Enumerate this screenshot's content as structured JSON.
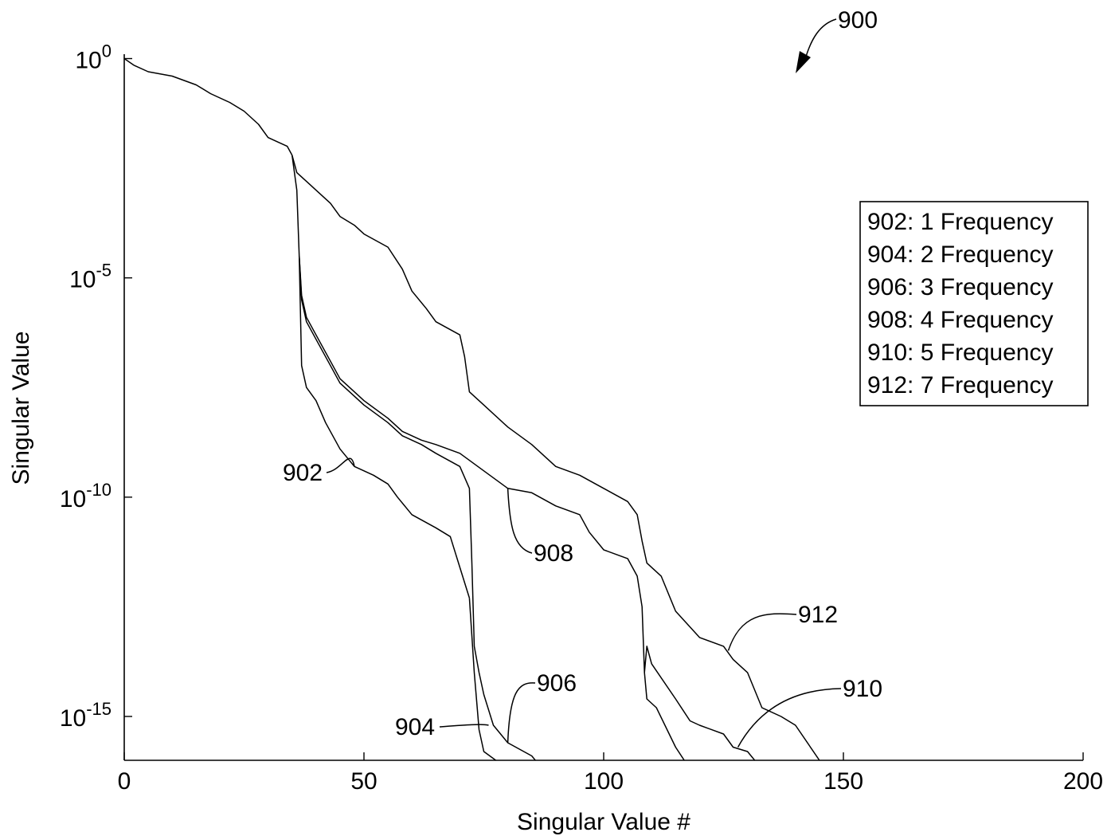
{
  "figure_label": "900",
  "chart_data": {
    "type": "line",
    "title": "",
    "xlabel": "Singular Value #",
    "ylabel": "Singular Value",
    "xlim": [
      0,
      200
    ],
    "ylim_log10": [
      -16,
      0.1
    ],
    "yscale": "log",
    "x_ticks": [
      0,
      50,
      100,
      150,
      200
    ],
    "x_tick_labels": [
      "0",
      "50",
      "100",
      "150",
      "200"
    ],
    "y_ticks_log10": [
      0,
      -5,
      -10,
      -15
    ],
    "y_tick_labels": [
      {
        "base": "10",
        "exp": "0"
      },
      {
        "base": "10",
        "exp": "-5"
      },
      {
        "base": "10",
        "exp": "-10"
      },
      {
        "base": "10",
        "exp": "-15"
      }
    ],
    "grid": false,
    "legend_position": "right",
    "legend": [
      "902: 1 Frequency",
      "904: 2 Frequency",
      "906: 3 Frequency",
      "908: 4 Frequency",
      "910: 5 Frequency",
      "912: 7 Frequency"
    ],
    "series_note": "y values are log10(singular value)",
    "series": [
      {
        "id": "common",
        "label": "",
        "points": [
          [
            0,
            0.0
          ],
          [
            2,
            -0.15
          ],
          [
            5,
            -0.3
          ],
          [
            10,
            -0.4
          ],
          [
            15,
            -0.6
          ],
          [
            18,
            -0.8
          ],
          [
            22,
            -1.0
          ],
          [
            25,
            -1.2
          ],
          [
            28,
            -1.5
          ],
          [
            30,
            -1.8
          ],
          [
            32,
            -1.9
          ],
          [
            34,
            -2.0
          ],
          [
            35,
            -2.2
          ]
        ]
      },
      {
        "id": "902",
        "label": "902",
        "points": [
          [
            35,
            -2.2
          ],
          [
            36,
            -3.0
          ],
          [
            36.5,
            -4.5
          ],
          [
            37,
            -7.0
          ],
          [
            38,
            -7.5
          ],
          [
            40,
            -7.8
          ],
          [
            42,
            -8.3
          ],
          [
            45,
            -8.9
          ],
          [
            48,
            -9.3
          ],
          [
            50,
            -9.4
          ],
          [
            52,
            -9.5
          ],
          [
            55,
            -9.7
          ],
          [
            57,
            -10.0
          ],
          [
            60,
            -10.4
          ],
          [
            65,
            -10.7
          ],
          [
            68,
            -10.9
          ],
          [
            70,
            -11.6
          ],
          [
            72,
            -12.3
          ]
        ]
      },
      {
        "id": "904",
        "label": "904",
        "points": [
          [
            72,
            -12.3
          ],
          [
            73,
            -14.0
          ],
          [
            74,
            -15.3
          ],
          [
            75,
            -15.8
          ],
          [
            80,
            -16.2
          ],
          [
            85,
            -16.4
          ]
        ]
      },
      {
        "id": "906",
        "label": "906",
        "points": [
          [
            36.5,
            -4.5
          ],
          [
            37,
            -5.5
          ],
          [
            38,
            -6.0
          ],
          [
            40,
            -6.4
          ],
          [
            43,
            -7.0
          ],
          [
            45,
            -7.4
          ],
          [
            48,
            -7.7
          ],
          [
            50,
            -7.9
          ],
          [
            55,
            -8.3
          ],
          [
            58,
            -8.6
          ],
          [
            60,
            -8.7
          ],
          [
            62,
            -8.8
          ],
          [
            65,
            -9.0
          ],
          [
            70,
            -9.3
          ],
          [
            72,
            -9.8
          ],
          [
            72.5,
            -11.5
          ],
          [
            73,
            -13.4
          ],
          [
            74,
            -14.0
          ],
          [
            75,
            -14.5
          ],
          [
            77,
            -15.2
          ],
          [
            80,
            -15.6
          ],
          [
            85,
            -15.9
          ],
          [
            88,
            -16.3
          ]
        ]
      },
      {
        "id": "908",
        "label": "908",
        "points": [
          [
            36.5,
            -4.5
          ],
          [
            37,
            -5.4
          ],
          [
            38,
            -5.9
          ],
          [
            40,
            -6.3
          ],
          [
            43,
            -6.9
          ],
          [
            45,
            -7.3
          ],
          [
            48,
            -7.6
          ],
          [
            50,
            -7.8
          ],
          [
            55,
            -8.2
          ],
          [
            58,
            -8.5
          ],
          [
            60,
            -8.6
          ],
          [
            62,
            -8.7
          ],
          [
            65,
            -8.8
          ],
          [
            70,
            -9.0
          ],
          [
            75,
            -9.4
          ],
          [
            80,
            -9.8
          ],
          [
            85,
            -9.9
          ],
          [
            90,
            -10.2
          ],
          [
            95,
            -10.4
          ],
          [
            97,
            -10.8
          ],
          [
            100,
            -11.2
          ],
          [
            105,
            -11.4
          ],
          [
            107,
            -11.8
          ],
          [
            108,
            -12.5
          ],
          [
            108.5,
            -14.0
          ],
          [
            109,
            -14.6
          ],
          [
            111,
            -14.8
          ],
          [
            115,
            -15.7
          ],
          [
            118,
            -16.2
          ]
        ]
      },
      {
        "id": "910",
        "label": "910",
        "points": [
          [
            108.5,
            -14.0
          ],
          [
            109,
            -13.4
          ],
          [
            110,
            -13.8
          ],
          [
            115,
            -14.6
          ],
          [
            118,
            -15.1
          ],
          [
            120,
            -15.2
          ],
          [
            125,
            -15.4
          ],
          [
            127,
            -15.7
          ],
          [
            130,
            -15.8
          ],
          [
            133,
            -16.2
          ]
        ]
      },
      {
        "id": "912",
        "label": "912",
        "points": [
          [
            35,
            -2.2
          ],
          [
            36,
            -2.6
          ],
          [
            38,
            -2.8
          ],
          [
            40,
            -3.0
          ],
          [
            43,
            -3.3
          ],
          [
            45,
            -3.6
          ],
          [
            48,
            -3.8
          ],
          [
            50,
            -4.0
          ],
          [
            55,
            -4.3
          ],
          [
            58,
            -4.8
          ],
          [
            60,
            -5.3
          ],
          [
            63,
            -5.7
          ],
          [
            65,
            -6.0
          ],
          [
            70,
            -6.3
          ],
          [
            71,
            -6.8
          ],
          [
            72,
            -7.6
          ],
          [
            75,
            -7.9
          ],
          [
            80,
            -8.4
          ],
          [
            85,
            -8.8
          ],
          [
            90,
            -9.3
          ],
          [
            95,
            -9.5
          ],
          [
            100,
            -9.8
          ],
          [
            105,
            -10.1
          ],
          [
            107,
            -10.4
          ],
          [
            108,
            -11.0
          ],
          [
            109,
            -11.5
          ],
          [
            112,
            -11.8
          ],
          [
            115,
            -12.6
          ],
          [
            120,
            -13.2
          ],
          [
            125,
            -13.4
          ],
          [
            127,
            -13.7
          ],
          [
            130,
            -14.0
          ],
          [
            133,
            -14.8
          ],
          [
            137,
            -15.0
          ],
          [
            140,
            -15.2
          ],
          [
            145,
            -16.0
          ],
          [
            146,
            -16.3
          ]
        ]
      }
    ],
    "annotations": [
      {
        "id": "902",
        "text": "902",
        "at": [
          48,
          -9.3
        ]
      },
      {
        "id": "904",
        "text": "904",
        "at": [
          76,
          -15.2
        ]
      },
      {
        "id": "906",
        "text": "906",
        "at": [
          80,
          -15.6
        ]
      },
      {
        "id": "908",
        "text": "908",
        "at": [
          80,
          -9.8
        ]
      },
      {
        "id": "910",
        "text": "910",
        "at": [
          128,
          -15.7
        ]
      },
      {
        "id": "912",
        "text": "912",
        "at": [
          126,
          -13.5
        ]
      }
    ]
  }
}
